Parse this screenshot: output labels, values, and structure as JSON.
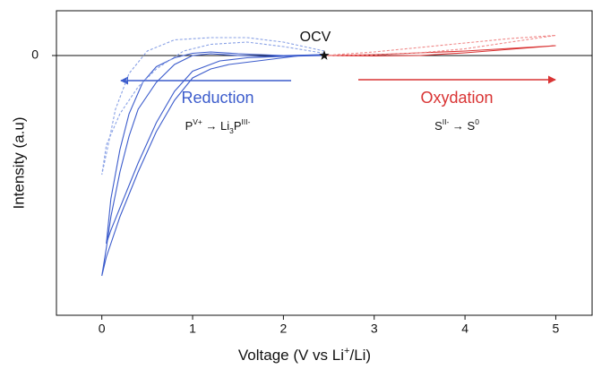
{
  "chart_data": {
    "type": "line",
    "xlabel_parts": [
      {
        "text": "Voltage (V vs Li",
        "pos": "normal"
      },
      {
        "text": "+",
        "pos": "sup"
      },
      {
        "text": "/Li)",
        "pos": "normal"
      }
    ],
    "ylabel": "Intensity (a.u)",
    "xlim": [
      -0.5,
      5.4
    ],
    "ylim": [
      -5.8,
      1
    ],
    "xticks": [
      0,
      1,
      2,
      3,
      4,
      5
    ],
    "yticks": [
      0
    ],
    "zero_line": true,
    "series": [
      {
        "color": "#3c5ccc",
        "dash": false,
        "x": [
          2.45,
          2.2,
          2.0,
          1.8,
          1.6,
          1.4,
          1.2,
          1.0,
          0.8,
          0.6,
          0.4,
          0.2,
          0.05,
          0,
          0.05,
          0.1,
          0.2,
          0.3,
          0.4,
          0.6,
          0.8,
          1.0,
          1.2,
          1.5,
          1.8,
          2.1,
          2.45
        ],
        "values": [
          0,
          0,
          -0.05,
          -0.1,
          -0.15,
          -0.2,
          -0.3,
          -0.5,
          -1.0,
          -1.7,
          -2.6,
          -3.6,
          -4.5,
          -4.92,
          -4.3,
          -3.6,
          -2.6,
          -1.8,
          -1.2,
          -0.6,
          -0.2,
          0,
          0.04,
          0,
          -0.02,
          0,
          0.02
        ]
      },
      {
        "color": "#3c5ccc",
        "dash": false,
        "x": [
          2.45,
          2.0,
          1.6,
          1.3,
          1.0,
          0.8,
          0.6,
          0.4,
          0.2,
          0.1,
          0.05,
          0.1,
          0.2,
          0.3,
          0.45,
          0.6,
          0.8,
          1.0,
          1.2,
          1.5,
          2.0,
          2.45
        ],
        "values": [
          0,
          -0.02,
          -0.05,
          -0.12,
          -0.35,
          -0.8,
          -1.5,
          -2.4,
          -3.4,
          -3.9,
          -4.2,
          -3.2,
          -2.1,
          -1.3,
          -0.6,
          -0.25,
          -0.05,
          0.05,
          0.08,
          0.04,
          0,
          0.02
        ]
      },
      {
        "color": "#8aa2e6",
        "dash": true,
        "x": [
          2.45,
          2.0,
          1.6,
          1.2,
          0.9,
          0.6,
          0.4,
          0.2,
          0.05,
          0,
          0.05,
          0.15,
          0.3,
          0.5,
          0.8,
          1.2,
          1.6,
          2.0,
          2.45
        ],
        "values": [
          0.05,
          0.2,
          0.3,
          0.25,
          0.1,
          -0.3,
          -0.7,
          -1.3,
          -2.0,
          -2.66,
          -2.2,
          -1.2,
          -0.4,
          0.1,
          0.35,
          0.4,
          0.4,
          0.3,
          0.1
        ]
      },
      {
        "color": "#d93434",
        "dash": false,
        "x": [
          2.45,
          3,
          3.5,
          4,
          4.5,
          5,
          4.5,
          4,
          3.5,
          3,
          2.45
        ],
        "values": [
          0,
          0.02,
          0.06,
          0.1,
          0.16,
          0.22,
          0.14,
          0.06,
          0,
          -0.01,
          0
        ]
      },
      {
        "color": "#f08a8a",
        "dash": true,
        "x": [
          2.45,
          3,
          3.5,
          4,
          4.5,
          5,
          4.5,
          4,
          3.5,
          3,
          2.45
        ],
        "values": [
          0,
          0.08,
          0.18,
          0.28,
          0.38,
          0.45,
          0.3,
          0.15,
          0.06,
          0.01,
          0
        ]
      }
    ],
    "ocv": {
      "label": "OCV",
      "x": 2.45,
      "y": 0
    },
    "reduction": {
      "label": "Reduction",
      "color": "#3c5ccc",
      "formula": [
        {
          "text": "P",
          "pos": "normal"
        },
        {
          "text": "V+",
          "pos": "sup"
        },
        {
          "text": " → Li",
          "pos": "normal"
        },
        {
          "text": "3",
          "pos": "sub"
        },
        {
          "text": "P",
          "pos": "normal"
        },
        {
          "text": "III-",
          "pos": "sup"
        }
      ]
    },
    "oxidation": {
      "label": "Oxydation",
      "color": "#d93434",
      "formula": [
        {
          "text": "S",
          "pos": "normal"
        },
        {
          "text": "II-",
          "pos": "sup"
        },
        {
          "text": " → S",
          "pos": "normal"
        },
        {
          "text": "0",
          "pos": "sup"
        }
      ]
    }
  }
}
